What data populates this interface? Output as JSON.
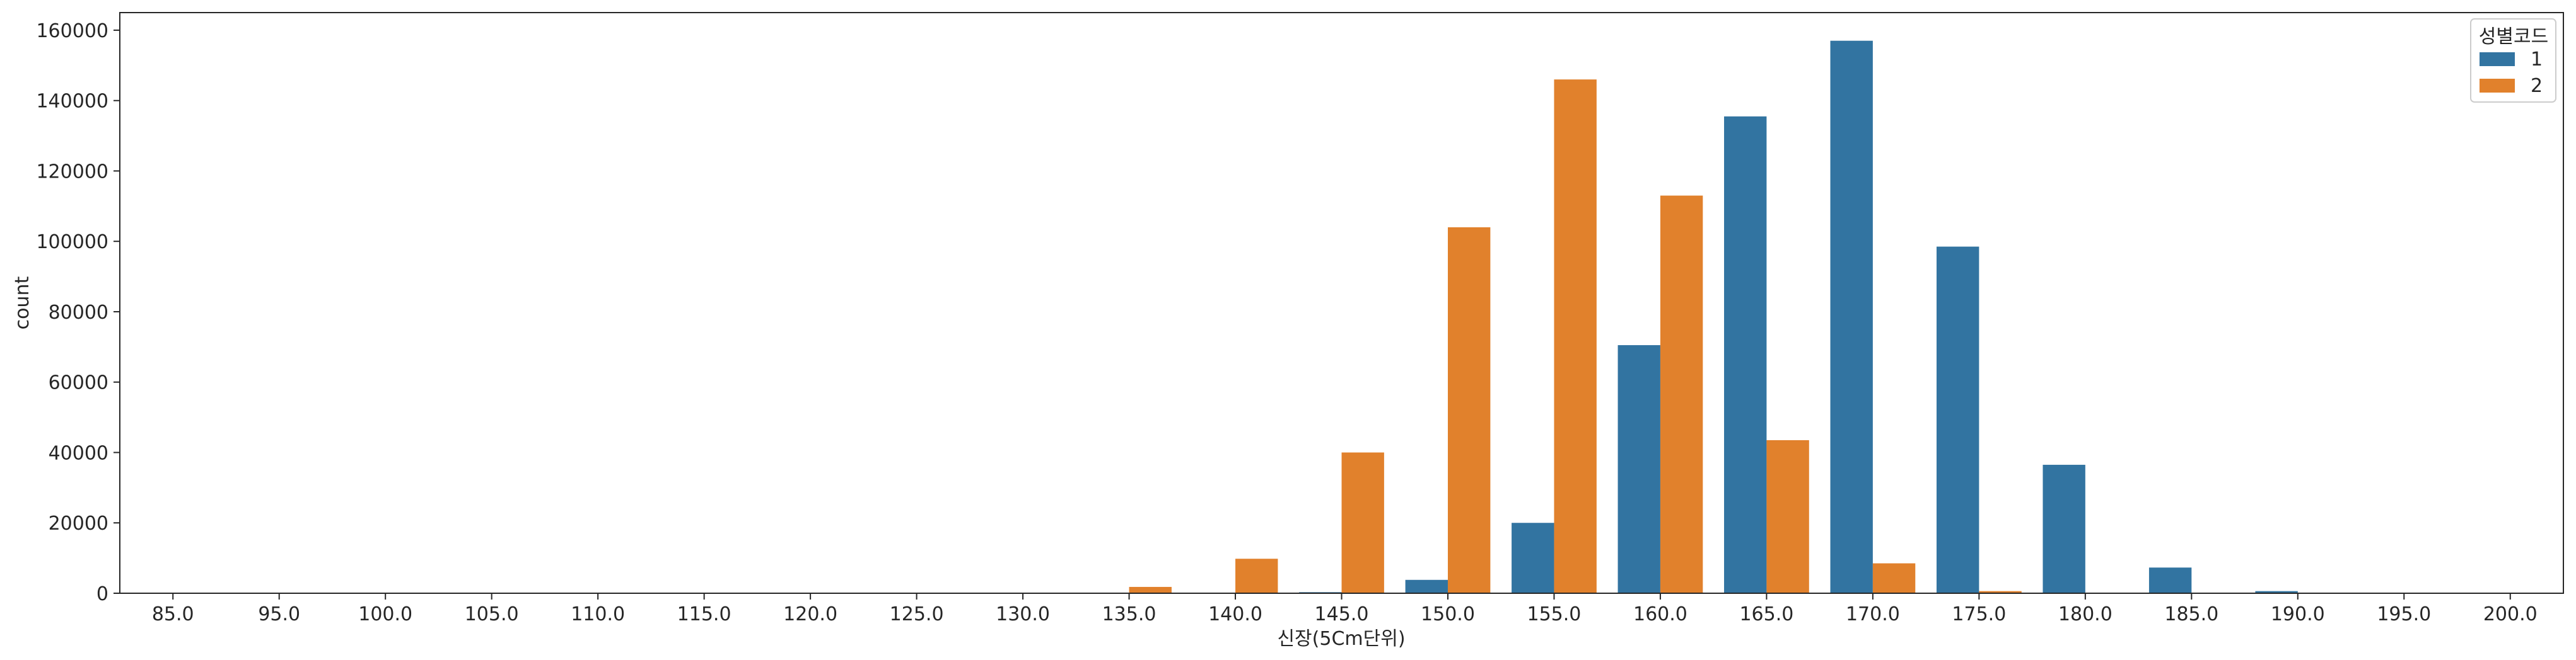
{
  "chart_data": {
    "type": "bar",
    "xlabel": "신장(5Cm단위)",
    "ylabel": "count",
    "categories": [
      "85.0",
      "95.0",
      "100.0",
      "105.0",
      "110.0",
      "115.0",
      "120.0",
      "125.0",
      "130.0",
      "135.0",
      "140.0",
      "145.0",
      "150.0",
      "155.0",
      "160.0",
      "165.0",
      "170.0",
      "175.0",
      "180.0",
      "185.0",
      "190.0",
      "195.0",
      "200.0"
    ],
    "series": [
      {
        "name": "1",
        "color": "#3274a1",
        "values": [
          0,
          0,
          0,
          0,
          0,
          0,
          0,
          0,
          0,
          0,
          0,
          300,
          3800,
          20000,
          70500,
          135500,
          157000,
          98500,
          36500,
          7300,
          600,
          0,
          0
        ]
      },
      {
        "name": "2",
        "color": "#e1812c",
        "values": [
          0,
          0,
          0,
          0,
          0,
          0,
          0,
          0,
          0,
          1800,
          9800,
          40000,
          104000,
          146000,
          113000,
          43500,
          8500,
          600,
          0,
          0,
          0,
          0,
          0
        ]
      }
    ],
    "ylim": [
      0,
      165000
    ],
    "yticks": [
      "0",
      "20000",
      "40000",
      "60000",
      "80000",
      "100000",
      "120000",
      "140000",
      "160000"
    ],
    "legend": {
      "title": "성별코드",
      "placement": "top-right"
    },
    "grid": false
  }
}
